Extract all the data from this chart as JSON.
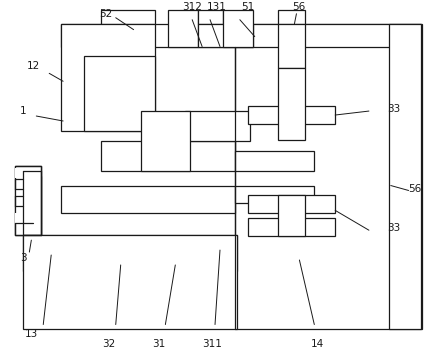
{
  "bg_color": "#ffffff",
  "line_color": "#1a1a1a",
  "lw": 0.9,
  "fig_width": 4.36,
  "fig_height": 3.57,
  "dpi": 100
}
